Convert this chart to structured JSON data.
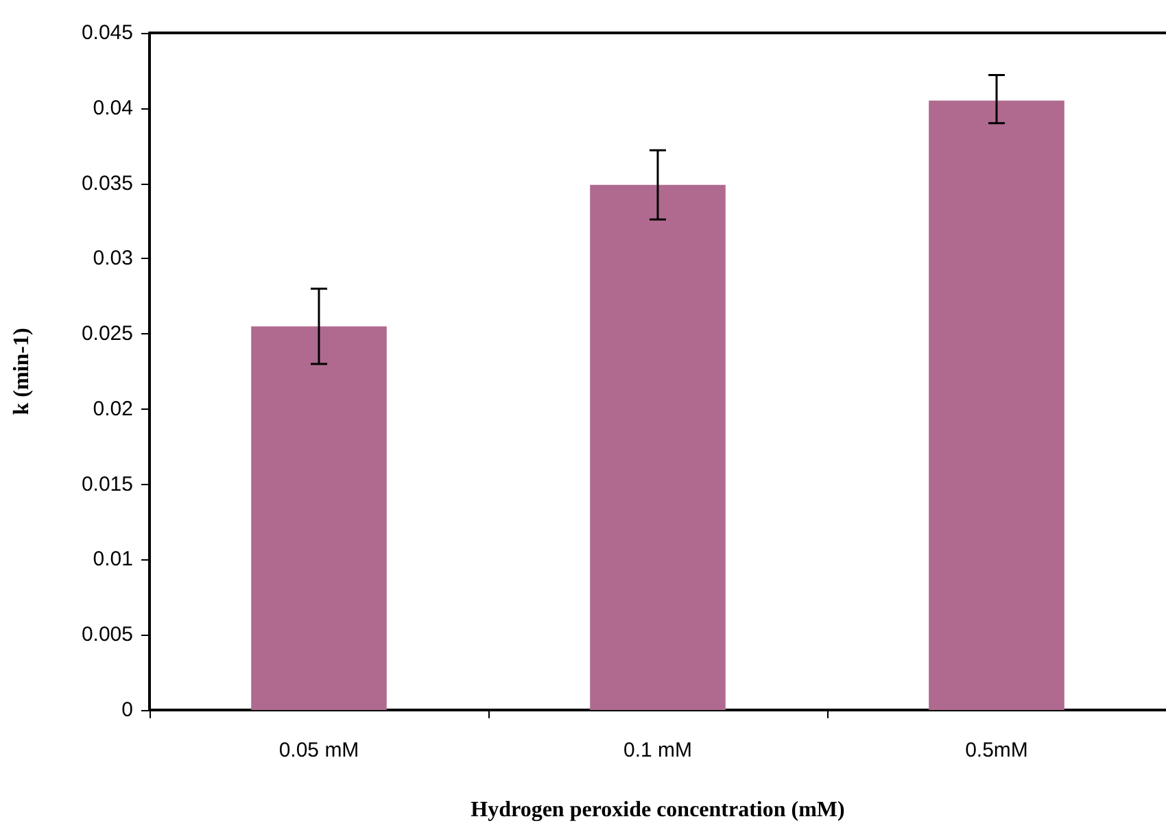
{
  "chart_data": {
    "type": "bar",
    "xlabel": "Hydrogen peroxide concentration (mM)",
    "ylabel": "k (min-1)",
    "categories": [
      "0.05 mM",
      "0.1 mM",
      "0.5mM"
    ],
    "values": [
      0.0255,
      0.0349,
      0.0405
    ],
    "errors": [
      [
        0.023,
        0.028
      ],
      [
        0.0326,
        0.0372
      ],
      [
        0.039,
        0.0422
      ]
    ],
    "color": "#b06a8f",
    "ylim": [
      0,
      0.045
    ],
    "yticks": [
      0,
      0.005,
      0.01,
      0.015,
      0.02,
      0.025,
      0.03,
      0.035,
      0.04,
      0.045
    ],
    "grid": false
  }
}
